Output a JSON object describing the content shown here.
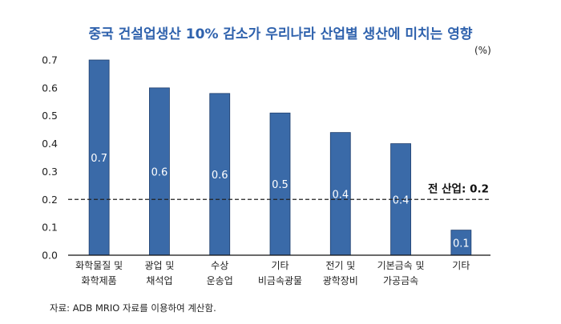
{
  "chart_data": {
    "type": "bar",
    "title": "중국 건설업생산 10% 감소가 우리나라 산업별 생산에 미치는 영향",
    "unit": "(%)",
    "categories": [
      [
        "화학물질 및",
        "화학제품"
      ],
      [
        "광업 및",
        "채석업"
      ],
      [
        "수상",
        "운송업"
      ],
      [
        "기타",
        "비금속광물"
      ],
      [
        "전기 및",
        "광학장비"
      ],
      [
        "기본금속 및",
        "가공금속"
      ],
      [
        "기타"
      ]
    ],
    "values": [
      0.7,
      0.6,
      0.58,
      0.51,
      0.44,
      0.4,
      0.09
    ],
    "data_labels": [
      "0.7",
      "0.6",
      "0.6",
      "0.5",
      "0.4",
      "0.4",
      "0.1"
    ],
    "ylim": [
      0,
      0.7
    ],
    "yticks": [
      "0.0",
      "0.1",
      "0.2",
      "0.3",
      "0.4",
      "0.5",
      "0.6",
      "0.7"
    ],
    "reference_line": {
      "value": 0.2,
      "label": "전 산업: 0.2",
      "style": "dashed"
    },
    "bar_color": "#3a6aa8",
    "grid": false,
    "source": "자료: ADB MRIO 자료를 이용하여 계산함."
  }
}
